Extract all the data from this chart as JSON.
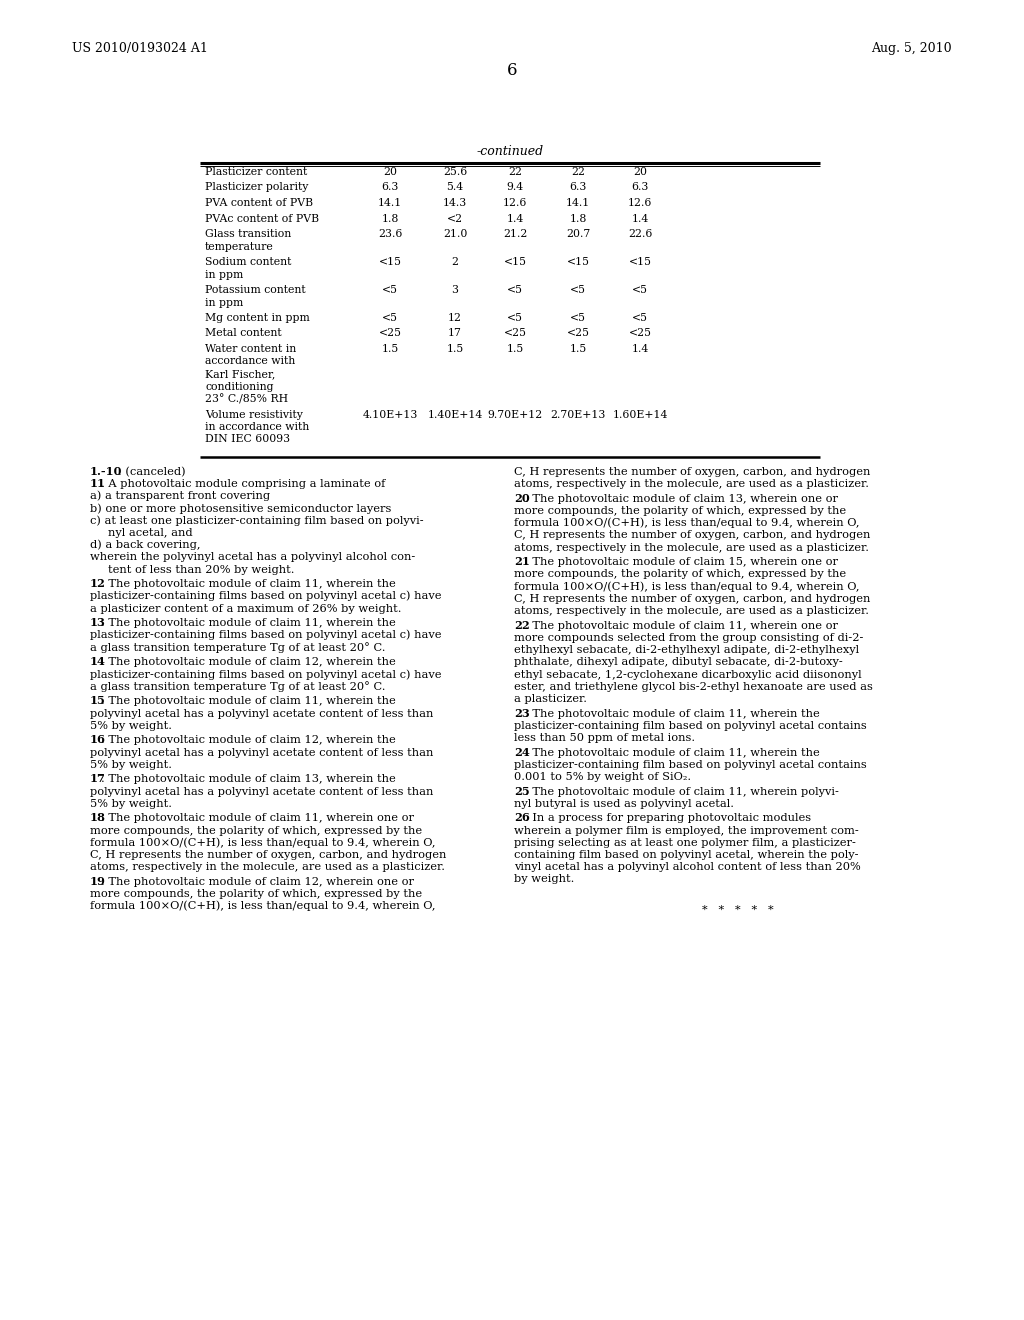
{
  "bg_color": "#ffffff",
  "header_left": "US 2010/0193024 A1",
  "header_right": "Aug. 5, 2010",
  "page_number": "6",
  "table_continued_label": "-continued",
  "table_rows": [
    {
      "label": "Plasticizer content",
      "v1": "20",
      "v2": "25.6",
      "v3": "22",
      "v4": "22",
      "v5": "20",
      "label_lines": 1
    },
    {
      "label": "Plasticizer polarity",
      "v1": "6.3",
      "v2": "5.4",
      "v3": "9.4",
      "v4": "6.3",
      "v5": "6.3",
      "label_lines": 1
    },
    {
      "label": "PVA content of PVB",
      "v1": "14.1",
      "v2": "14.3",
      "v3": "12.6",
      "v4": "14.1",
      "v5": "12.6",
      "label_lines": 1
    },
    {
      "label": "PVAc content of PVB",
      "v1": "1.8",
      "v2": "<2",
      "v3": "1.4",
      "v4": "1.8",
      "v5": "1.4",
      "label_lines": 1
    },
    {
      "label": "Glass transition\ntemperature",
      "v1": "23.6",
      "v2": "21.0",
      "v3": "21.2",
      "v4": "20.7",
      "v5": "22.6",
      "label_lines": 2
    },
    {
      "label": "Sodium content\nin ppm",
      "v1": "<15",
      "v2": "2",
      "v3": "<15",
      "v4": "<15",
      "v5": "<15",
      "label_lines": 2
    },
    {
      "label": "Potassium content\nin ppm",
      "v1": "<5",
      "v2": "3",
      "v3": "<5",
      "v4": "<5",
      "v5": "<5",
      "label_lines": 2
    },
    {
      "label": "Mg content in ppm",
      "v1": "<5",
      "v2": "12",
      "v3": "<5",
      "v4": "<5",
      "v5": "<5",
      "label_lines": 1
    },
    {
      "label": "Metal content",
      "v1": "<25",
      "v2": "17",
      "v3": "<25",
      "v4": "<25",
      "v5": "<25",
      "label_lines": 1
    },
    {
      "label": "Water content in\naccordance with\nKarl Fischer,\nconditioning\n23° C./85% RH",
      "v1": "1.5",
      "v2": "1.5",
      "v3": "1.5",
      "v4": "1.5",
      "v5": "1.4",
      "label_lines": 5
    },
    {
      "label": "Volume resistivity\nin accordance with\nDIN IEC 60093",
      "v1": "4.10E+13",
      "v2": "1.40E+14",
      "v3": "9.70E+12",
      "v4": "2.70E+13",
      "v5": "1.60E+14",
      "label_lines": 3
    }
  ]
}
